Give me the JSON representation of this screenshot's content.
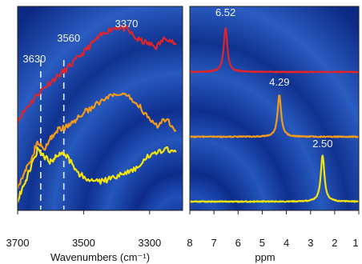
{
  "chart_data": [
    {
      "type": "line",
      "xlabel": "Wavenumbers (cm⁻¹)",
      "ylabel": "",
      "xlim": [
        3700,
        3200
      ],
      "xticks": [
        "3700",
        "3500",
        "3300"
      ],
      "xtick_values": [
        3700,
        3500,
        3300
      ],
      "colors": [
        "#e0242a",
        "#f29a1b",
        "#f3e40f"
      ],
      "series": [
        {
          "color": "#e0242a",
          "x": [
            3700,
            3670,
            3640,
            3610,
            3580,
            3550,
            3520,
            3490,
            3460,
            3430,
            3400,
            3370,
            3340,
            3310,
            3280,
            3250,
            3220
          ],
          "y": [
            0.45,
            0.52,
            0.58,
            0.63,
            0.67,
            0.71,
            0.76,
            0.81,
            0.86,
            0.9,
            0.92,
            0.91,
            0.86,
            0.84,
            0.82,
            0.87,
            0.83
          ]
        },
        {
          "color": "#f29a1b",
          "x": [
            3700,
            3680,
            3660,
            3640,
            3620,
            3600,
            3580,
            3560,
            3540,
            3520,
            3490,
            3460,
            3430,
            3400,
            3370,
            3340,
            3310,
            3280,
            3250,
            3220
          ],
          "y": [
            0.12,
            0.18,
            0.25,
            0.34,
            0.3,
            0.36,
            0.4,
            0.41,
            0.43,
            0.46,
            0.5,
            0.53,
            0.56,
            0.58,
            0.57,
            0.54,
            0.48,
            0.42,
            0.46,
            0.4
          ]
        },
        {
          "color": "#f3e40f",
          "x": [
            3700,
            3680,
            3660,
            3640,
            3620,
            3600,
            3580,
            3560,
            3540,
            3520,
            3490,
            3460,
            3430,
            3400,
            3370,
            3340,
            3310,
            3280,
            3250,
            3220
          ],
          "y": [
            0.05,
            0.12,
            0.22,
            0.3,
            0.27,
            0.24,
            0.28,
            0.29,
            0.24,
            0.19,
            0.15,
            0.14,
            0.15,
            0.17,
            0.19,
            0.21,
            0.26,
            0.28,
            0.31,
            0.29
          ]
        }
      ],
      "reference_lines": [
        {
          "x": 3630,
          "label": "3630"
        },
        {
          "x": 3560,
          "label": "3560"
        }
      ],
      "annotations": [
        {
          "label": "3370",
          "x": 3370
        }
      ]
    },
    {
      "type": "line",
      "xlabel": "ppm",
      "ylabel": "",
      "xlim": [
        8,
        1
      ],
      "xticks": [
        "8",
        "7",
        "6",
        "5",
        "4",
        "3",
        "2",
        "1"
      ],
      "xtick_values": [
        8,
        7,
        6,
        5,
        4,
        3,
        2,
        1
      ],
      "series": [
        {
          "color": "#e0242a",
          "peak_ppm": 6.52,
          "label": "6.52"
        },
        {
          "color": "#f29a1b",
          "peak_ppm": 4.29,
          "label": "4.29"
        },
        {
          "color": "#f3e40f",
          "peak_ppm": 2.5,
          "label": "2.50"
        }
      ]
    }
  ]
}
